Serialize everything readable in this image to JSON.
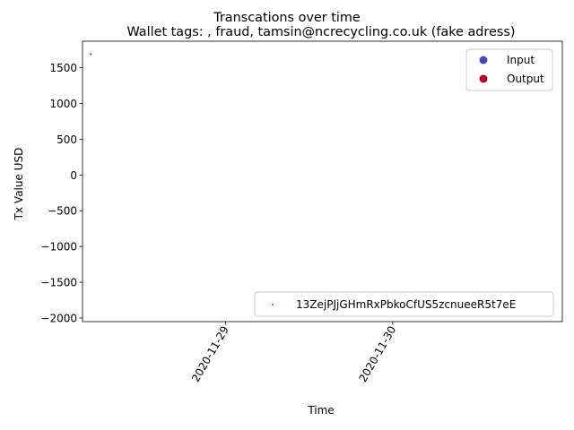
{
  "chart_data": {
    "type": "scatter",
    "suptitle": "Transcations over time",
    "title": "Wallet tags: , fraud, tamsin@ncrecycling.co.uk (fake adress)",
    "xlabel": "Time",
    "ylabel": "Tx Value USD",
    "xlim": [
      "2020-11-28T03:30",
      "2020-12-01T00:20"
    ],
    "ylim": [
      -2050,
      1870
    ],
    "x_ticks": [
      "2020-11-29",
      "2020-11-30"
    ],
    "y_ticks": [
      -2000,
      -1500,
      -1000,
      -500,
      0,
      500,
      1000,
      1500
    ],
    "grid": false,
    "series": [
      {
        "name": "13ZejPJjGHmRxPbkoCfUS5zcnueeR5t7eE",
        "color": "#1f77b4",
        "points": [
          {
            "x": "2020-11-28T04:40",
            "y": 1690,
            "type": "Output"
          }
        ]
      }
    ],
    "hue_legend": {
      "placement": "upper right",
      "entries": [
        {
          "label": "Input",
          "color": "#3b4cc0"
        },
        {
          "label": "Output",
          "color": "#b40426"
        }
      ]
    },
    "series_legend": {
      "placement": "lower right"
    }
  }
}
